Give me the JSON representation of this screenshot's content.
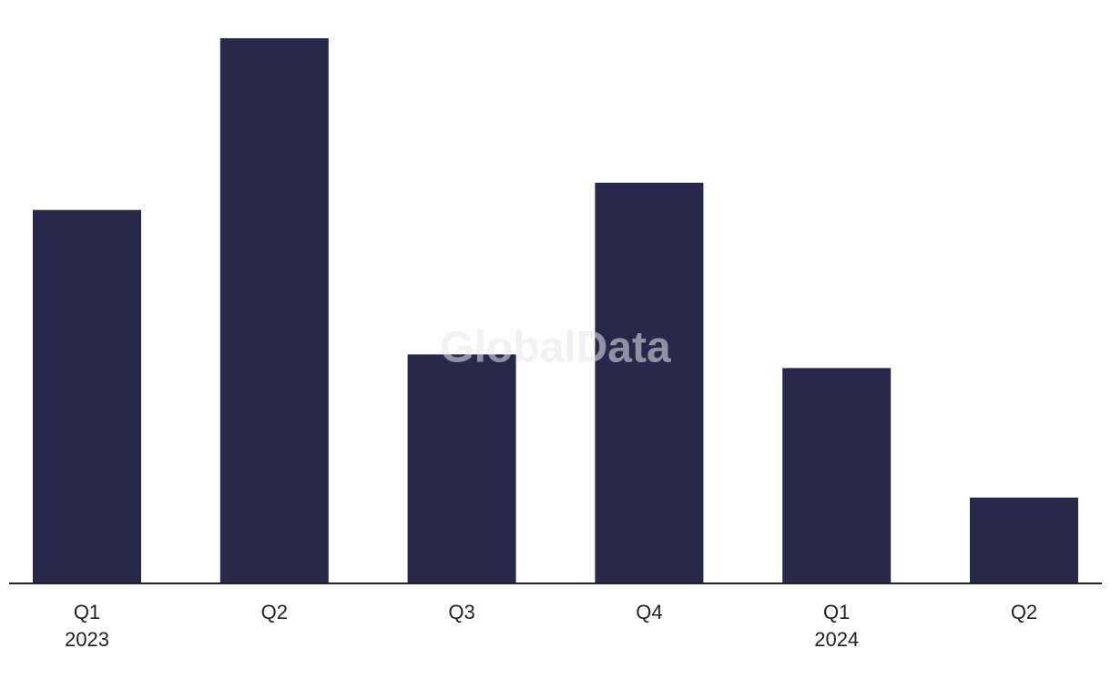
{
  "chart_data": {
    "type": "bar",
    "watermark": "GlobalData",
    "categories": [
      "Q1",
      "Q2",
      "Q3",
      "Q4",
      "Q1",
      "Q2"
    ],
    "year_labels": [
      "2023",
      null,
      null,
      null,
      "2024",
      null
    ],
    "values": [
      27.4,
      40,
      16.8,
      29.4,
      15.8,
      6.3
    ],
    "color": "#28284a",
    "ylim": [
      0,
      40
    ]
  }
}
